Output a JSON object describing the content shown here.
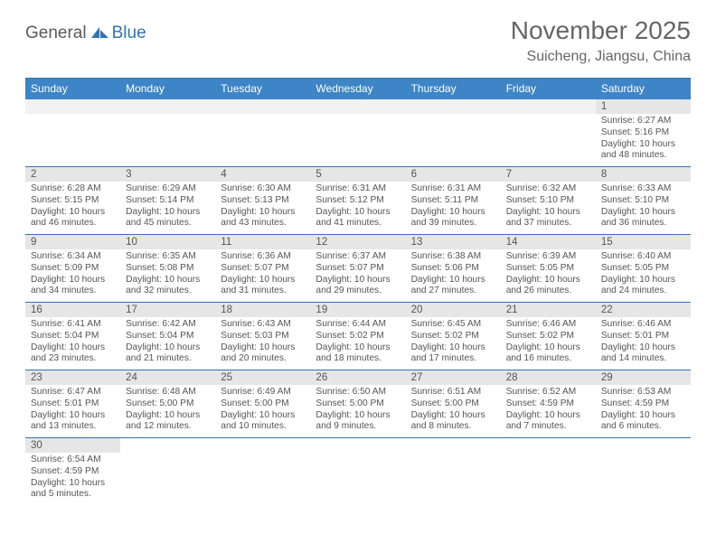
{
  "logo": {
    "general": "General",
    "blue": "Blue"
  },
  "title": "November 2025",
  "location": "Suicheng, Jiangsu, China",
  "colors": {
    "header_bg": "#3d85c6",
    "header_border": "#2f75b5",
    "daynum_bg": "#e6e6e6",
    "empty_bg": "#f2f2f2",
    "text": "#555555",
    "logo_blue": "#2f75b5"
  },
  "day_names": [
    "Sunday",
    "Monday",
    "Tuesday",
    "Wednesday",
    "Thursday",
    "Friday",
    "Saturday"
  ],
  "weeks": [
    [
      null,
      null,
      null,
      null,
      null,
      null,
      {
        "n": "1",
        "sunrise": "6:27 AM",
        "sunset": "5:16 PM",
        "daylight": "10 hours and 48 minutes."
      }
    ],
    [
      {
        "n": "2",
        "sunrise": "6:28 AM",
        "sunset": "5:15 PM",
        "daylight": "10 hours and 46 minutes."
      },
      {
        "n": "3",
        "sunrise": "6:29 AM",
        "sunset": "5:14 PM",
        "daylight": "10 hours and 45 minutes."
      },
      {
        "n": "4",
        "sunrise": "6:30 AM",
        "sunset": "5:13 PM",
        "daylight": "10 hours and 43 minutes."
      },
      {
        "n": "5",
        "sunrise": "6:31 AM",
        "sunset": "5:12 PM",
        "daylight": "10 hours and 41 minutes."
      },
      {
        "n": "6",
        "sunrise": "6:31 AM",
        "sunset": "5:11 PM",
        "daylight": "10 hours and 39 minutes."
      },
      {
        "n": "7",
        "sunrise": "6:32 AM",
        "sunset": "5:10 PM",
        "daylight": "10 hours and 37 minutes."
      },
      {
        "n": "8",
        "sunrise": "6:33 AM",
        "sunset": "5:10 PM",
        "daylight": "10 hours and 36 minutes."
      }
    ],
    [
      {
        "n": "9",
        "sunrise": "6:34 AM",
        "sunset": "5:09 PM",
        "daylight": "10 hours and 34 minutes."
      },
      {
        "n": "10",
        "sunrise": "6:35 AM",
        "sunset": "5:08 PM",
        "daylight": "10 hours and 32 minutes."
      },
      {
        "n": "11",
        "sunrise": "6:36 AM",
        "sunset": "5:07 PM",
        "daylight": "10 hours and 31 minutes."
      },
      {
        "n": "12",
        "sunrise": "6:37 AM",
        "sunset": "5:07 PM",
        "daylight": "10 hours and 29 minutes."
      },
      {
        "n": "13",
        "sunrise": "6:38 AM",
        "sunset": "5:06 PM",
        "daylight": "10 hours and 27 minutes."
      },
      {
        "n": "14",
        "sunrise": "6:39 AM",
        "sunset": "5:05 PM",
        "daylight": "10 hours and 26 minutes."
      },
      {
        "n": "15",
        "sunrise": "6:40 AM",
        "sunset": "5:05 PM",
        "daylight": "10 hours and 24 minutes."
      }
    ],
    [
      {
        "n": "16",
        "sunrise": "6:41 AM",
        "sunset": "5:04 PM",
        "daylight": "10 hours and 23 minutes."
      },
      {
        "n": "17",
        "sunrise": "6:42 AM",
        "sunset": "5:04 PM",
        "daylight": "10 hours and 21 minutes."
      },
      {
        "n": "18",
        "sunrise": "6:43 AM",
        "sunset": "5:03 PM",
        "daylight": "10 hours and 20 minutes."
      },
      {
        "n": "19",
        "sunrise": "6:44 AM",
        "sunset": "5:02 PM",
        "daylight": "10 hours and 18 minutes."
      },
      {
        "n": "20",
        "sunrise": "6:45 AM",
        "sunset": "5:02 PM",
        "daylight": "10 hours and 17 minutes."
      },
      {
        "n": "21",
        "sunrise": "6:46 AM",
        "sunset": "5:02 PM",
        "daylight": "10 hours and 16 minutes."
      },
      {
        "n": "22",
        "sunrise": "6:46 AM",
        "sunset": "5:01 PM",
        "daylight": "10 hours and 14 minutes."
      }
    ],
    [
      {
        "n": "23",
        "sunrise": "6:47 AM",
        "sunset": "5:01 PM",
        "daylight": "10 hours and 13 minutes."
      },
      {
        "n": "24",
        "sunrise": "6:48 AM",
        "sunset": "5:00 PM",
        "daylight": "10 hours and 12 minutes."
      },
      {
        "n": "25",
        "sunrise": "6:49 AM",
        "sunset": "5:00 PM",
        "daylight": "10 hours and 10 minutes."
      },
      {
        "n": "26",
        "sunrise": "6:50 AM",
        "sunset": "5:00 PM",
        "daylight": "10 hours and 9 minutes."
      },
      {
        "n": "27",
        "sunrise": "6:51 AM",
        "sunset": "5:00 PM",
        "daylight": "10 hours and 8 minutes."
      },
      {
        "n": "28",
        "sunrise": "6:52 AM",
        "sunset": "4:59 PM",
        "daylight": "10 hours and 7 minutes."
      },
      {
        "n": "29",
        "sunrise": "6:53 AM",
        "sunset": "4:59 PM",
        "daylight": "10 hours and 6 minutes."
      }
    ],
    [
      {
        "n": "30",
        "sunrise": "6:54 AM",
        "sunset": "4:59 PM",
        "daylight": "10 hours and 5 minutes."
      },
      null,
      null,
      null,
      null,
      null,
      null
    ]
  ],
  "labels": {
    "sunrise": "Sunrise: ",
    "sunset": "Sunset: ",
    "daylight": "Daylight: "
  }
}
